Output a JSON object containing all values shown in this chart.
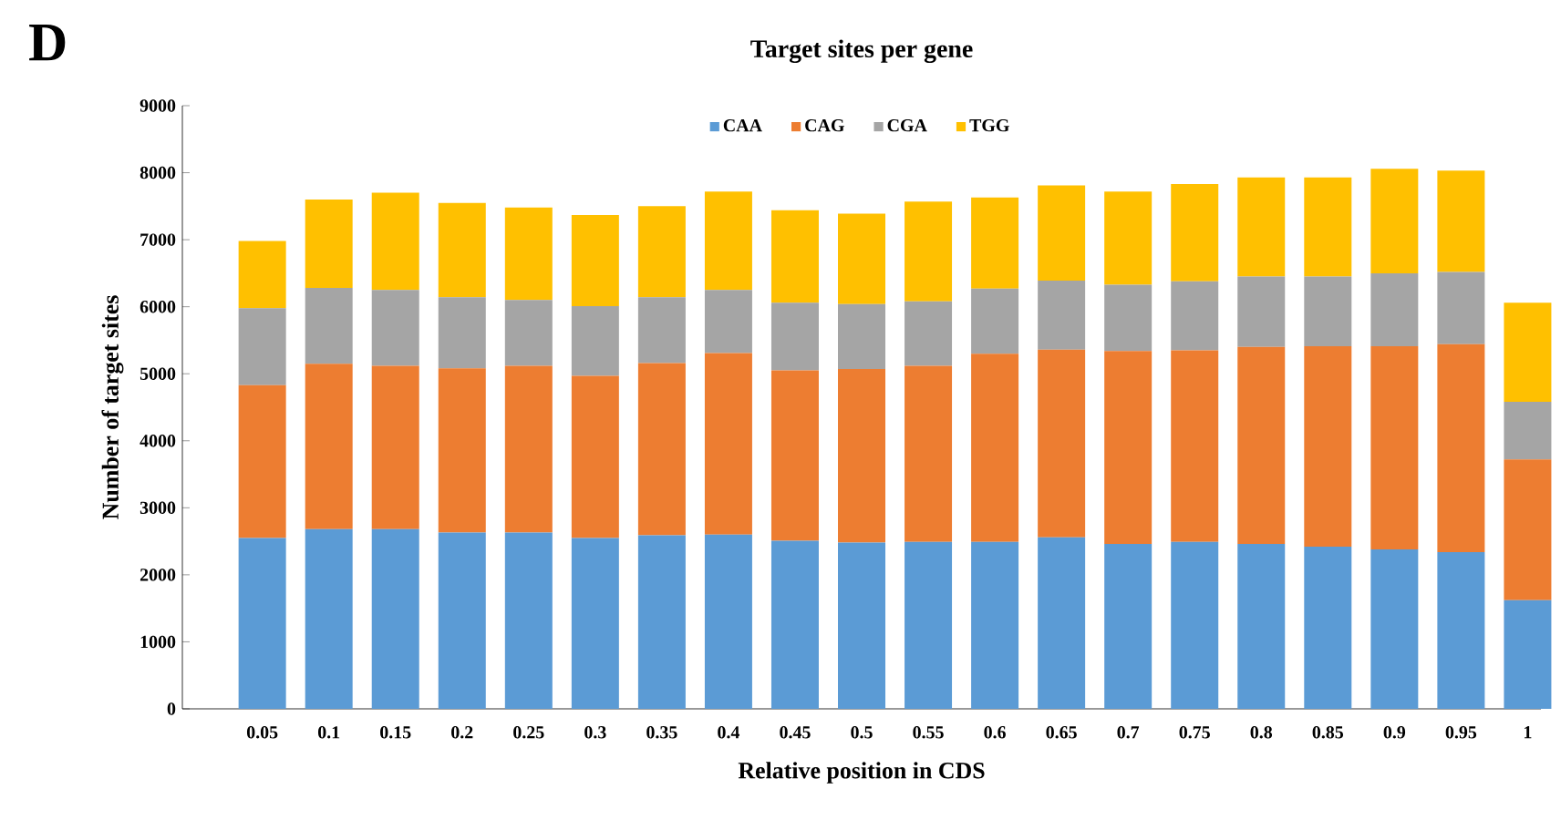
{
  "chart_data": {
    "type": "bar",
    "stacked": true,
    "title": "Target sites per gene",
    "xlabel": "Relative position in CDS",
    "ylabel": "Number of target sites",
    "annotations": [
      "D"
    ],
    "categories": [
      "0.05",
      "0.1",
      "0.15",
      "0.2",
      "0.25",
      "0.3",
      "0.35",
      "0.4",
      "0.45",
      "0.5",
      "0.55",
      "0.6",
      "0.65",
      "0.7",
      "0.75",
      "0.8",
      "0.85",
      "0.9",
      "0.95",
      "1"
    ],
    "series": [
      {
        "name": "CAA",
        "color": "#5b9bd5",
        "values": [
          2550,
          2680,
          2680,
          2630,
          2630,
          2550,
          2590,
          2600,
          2510,
          2480,
          2490,
          2490,
          2560,
          2460,
          2490,
          2460,
          2420,
          2380,
          2340,
          1620
        ]
      },
      {
        "name": "CAG",
        "color": "#ed7d31",
        "values": [
          2280,
          2470,
          2440,
          2450,
          2490,
          2420,
          2570,
          2710,
          2540,
          2590,
          2630,
          2810,
          2800,
          2880,
          2860,
          2940,
          2990,
          3030,
          3100,
          2100
        ]
      },
      {
        "name": "CGA",
        "color": "#a5a5a5",
        "values": [
          1150,
          1130,
          1130,
          1060,
          980,
          1040,
          980,
          940,
          1010,
          970,
          960,
          970,
          1030,
          990,
          1030,
          1050,
          1040,
          1090,
          1080,
          860
        ]
      },
      {
        "name": "TGG",
        "color": "#ffc000",
        "values": [
          1000,
          1320,
          1450,
          1410,
          1380,
          1360,
          1360,
          1470,
          1380,
          1350,
          1490,
          1360,
          1420,
          1390,
          1450,
          1480,
          1480,
          1560,
          1510,
          1480
        ]
      }
    ],
    "ylim": [
      0,
      9000
    ],
    "yticks": [
      0,
      1000,
      2000,
      3000,
      4000,
      5000,
      6000,
      7000,
      8000,
      9000
    ],
    "grid": false,
    "legend": "top"
  }
}
